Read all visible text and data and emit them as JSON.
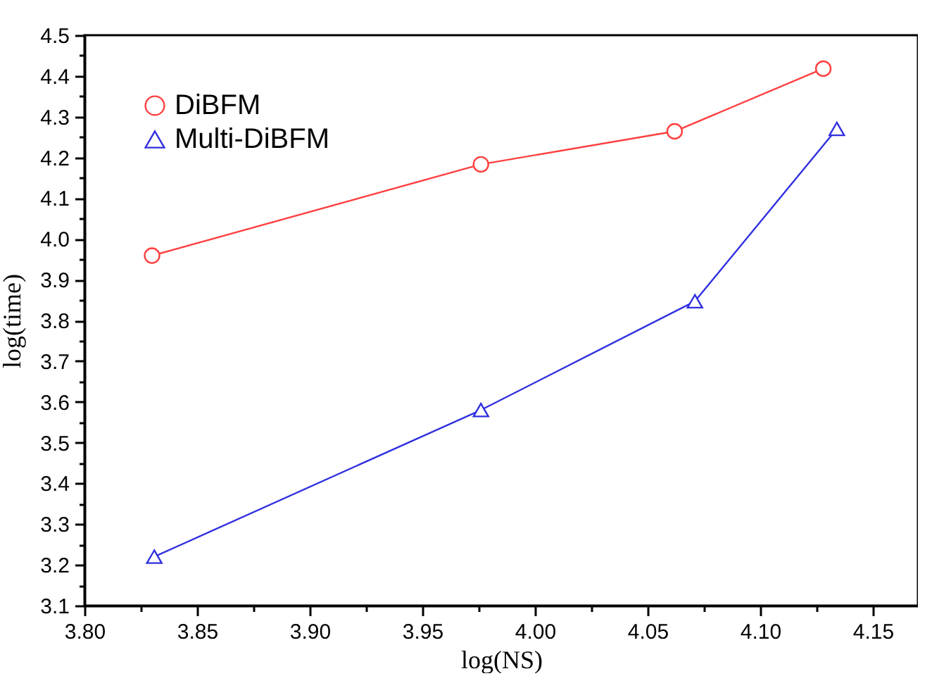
{
  "chart_data": {
    "type": "line",
    "xlabel": "log(NS)",
    "ylabel": "log(time)",
    "xlim": [
      3.8,
      4.17
    ],
    "ylim": [
      3.1,
      4.5
    ],
    "xticks": [
      {
        "value": 3.8,
        "label": "3.80"
      },
      {
        "value": 3.825,
        "label": null
      },
      {
        "value": 3.85,
        "label": "3.85"
      },
      {
        "value": 3.875,
        "label": null
      },
      {
        "value": 3.9,
        "label": "3.90"
      },
      {
        "value": 3.925,
        "label": null
      },
      {
        "value": 3.95,
        "label": "3.95"
      },
      {
        "value": 3.975,
        "label": null
      },
      {
        "value": 4.0,
        "label": "4.00"
      },
      {
        "value": 4.025,
        "label": null
      },
      {
        "value": 4.05,
        "label": "4.05"
      },
      {
        "value": 4.075,
        "label": null
      },
      {
        "value": 4.1,
        "label": "4.10"
      },
      {
        "value": 4.125,
        "label": null
      },
      {
        "value": 4.15,
        "label": "4.15"
      }
    ],
    "yticks": [
      {
        "value": 3.1,
        "label": "3.1"
      },
      {
        "value": 3.15,
        "label": null
      },
      {
        "value": 3.2,
        "label": "3.2"
      },
      {
        "value": 3.25,
        "label": null
      },
      {
        "value": 3.3,
        "label": "3.3"
      },
      {
        "value": 3.35,
        "label": null
      },
      {
        "value": 3.4,
        "label": "3.4"
      },
      {
        "value": 3.45,
        "label": null
      },
      {
        "value": 3.5,
        "label": "3.5"
      },
      {
        "value": 3.55,
        "label": null
      },
      {
        "value": 3.6,
        "label": "3.6"
      },
      {
        "value": 3.65,
        "label": null
      },
      {
        "value": 3.7,
        "label": "3.7"
      },
      {
        "value": 3.75,
        "label": null
      },
      {
        "value": 3.8,
        "label": "3.8"
      },
      {
        "value": 3.85,
        "label": null
      },
      {
        "value": 3.9,
        "label": "3.9"
      },
      {
        "value": 3.95,
        "label": null
      },
      {
        "value": 4.0,
        "label": "4.0"
      },
      {
        "value": 4.05,
        "label": null
      },
      {
        "value": 4.1,
        "label": "4.1"
      },
      {
        "value": 4.15,
        "label": null
      },
      {
        "value": 4.2,
        "label": "4.2"
      },
      {
        "value": 4.25,
        "label": null
      },
      {
        "value": 4.3,
        "label": "4.3"
      },
      {
        "value": 4.35,
        "label": null
      },
      {
        "value": 4.4,
        "label": "4.4"
      },
      {
        "value": 4.45,
        "label": null
      },
      {
        "value": 4.5,
        "label": "4.5"
      }
    ],
    "legend": "top left",
    "grid": false,
    "series": [
      {
        "name": "DiBFM",
        "color": "#ff4040",
        "marker": "circle",
        "x": [
          3.83,
          3.976,
          4.062,
          4.128
        ],
        "values": [
          3.959,
          4.183,
          4.264,
          4.418
        ]
      },
      {
        "name": "Multi-DiBFM",
        "color": "#3030e0",
        "marker": "triangle",
        "x": [
          3.831,
          3.976,
          4.071,
          4.134
        ],
        "values": [
          3.22,
          3.58,
          3.847,
          4.27
        ]
      }
    ]
  }
}
